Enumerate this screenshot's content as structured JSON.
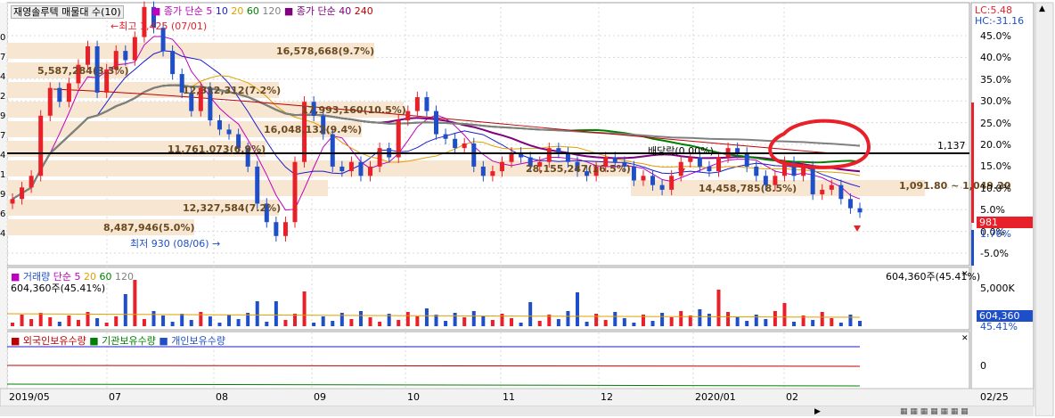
{
  "header": {
    "title": "재영솔루텍 매물대 수(10)",
    "ma_prefix": "종가 단순",
    "ma_periods": [
      "5",
      "10",
      "20",
      "60",
      "120"
    ],
    "ma2_prefix": "종가 단순",
    "ma2_periods": [
      "40",
      "240"
    ]
  },
  "corner": {
    "lc": "LC:5.48",
    "hc": "HC:-31.16"
  },
  "price_panel": {
    "high_label": "최고 1,425 (07/01)",
    "low_label": "최저 930 (08/06)",
    "ref_line_value": "1,137",
    "ref_line_caption": "배당락(0.00%)",
    "current_price": "981",
    "current_pct": "1.76%",
    "right_axis_pct": [
      "45.0%",
      "40.0%",
      "35.0%",
      "30.0%",
      "25.0%",
      "20.0%",
      "15.0%",
      "10.0%",
      "5.0%",
      "0.0%",
      "-5.0%"
    ],
    "left_axis_digits": [
      "0",
      "7",
      "4",
      "2",
      "9",
      "7",
      "4",
      "1",
      "9",
      "6",
      "4"
    ],
    "volume_profile": [
      "16,578,668(9.7%)",
      "5,587,284(3.3%)",
      "12,312,312(7.2%)",
      "17,993,160(10.5%)",
      "16,048,132(9.4%)",
      "11,761,073(6.9%)",
      "28,155,247(16.5%)",
      "14,458,785(8.5%)",
      "12,327,584(7.2%)",
      "8,487,946(5.0%)"
    ],
    "range_label": "1,091.80 ~ 1,049.20"
  },
  "volume_panel": {
    "title": "거래량",
    "ma_prefix": "단순",
    "ma_periods": [
      "5",
      "20",
      "60",
      "120"
    ],
    "value_left": "604,360주(45.41%)",
    "value_right": "604,360주(45.41%)",
    "axis_max": "5,000K",
    "current": "604,360",
    "current_pct": "45.41%"
  },
  "holdings_panel": {
    "legend": [
      "외국인보유수량",
      "기관보유수량",
      "개인보유수량"
    ],
    "axis_zero": "0"
  },
  "x_axis": {
    "labels": [
      "2019/05",
      "07",
      "08",
      "09",
      "10",
      "11",
      "12",
      "2020/01",
      "02"
    ],
    "right_date": "02/25"
  },
  "colors": {
    "up": "#e8202a",
    "down": "#1f4fc8",
    "ma5": "#c000c0",
    "ma10": "#1c1ccc",
    "ma20": "#e0a000",
    "ma60": "#008000",
    "ma120": "#808080",
    "ma40": "#800080",
    "ma240": "#c00000",
    "profile": "#f7e6d2",
    "profile_text": "#6a4a1e",
    "annotation_circle": "#e8202a"
  },
  "chart_data": {
    "type": "candlestick",
    "price_series": "daily OHLC close approx",
    "closes": [
      1010,
      1035,
      1060,
      1190,
      1250,
      1220,
      1260,
      1300,
      1340,
      1240,
      1290,
      1330,
      1310,
      1360,
      1425,
      1380,
      1330,
      1280,
      1240,
      1200,
      1250,
      1180,
      1160,
      1150,
      1120,
      1080,
      1000,
      960,
      930,
      960,
      1090,
      1220,
      1190,
      1150,
      1080,
      1070,
      1090,
      1060,
      1080,
      1120,
      1100,
      1180,
      1200,
      1230,
      1200,
      1150,
      1140,
      1120,
      1130,
      1080,
      1060,
      1070,
      1090,
      1110,
      1100,
      1080,
      1090,
      1120,
      1110,
      1090,
      1070,
      1060,
      1080,
      1100,
      1090,
      1080,
      1050,
      1060,
      1040,
      1030,
      1060,
      1090,
      1100,
      1080,
      1070,
      1100,
      1120,
      1110,
      1080,
      1060,
      1040,
      1060,
      1090,
      1060,
      1080,
      1020,
      1030,
      1040,
      1010,
      990,
      981
    ],
    "yrange_pct": [
      -5,
      45
    ],
    "ref_line": 1137,
    "high": 1425,
    "low": 930
  }
}
